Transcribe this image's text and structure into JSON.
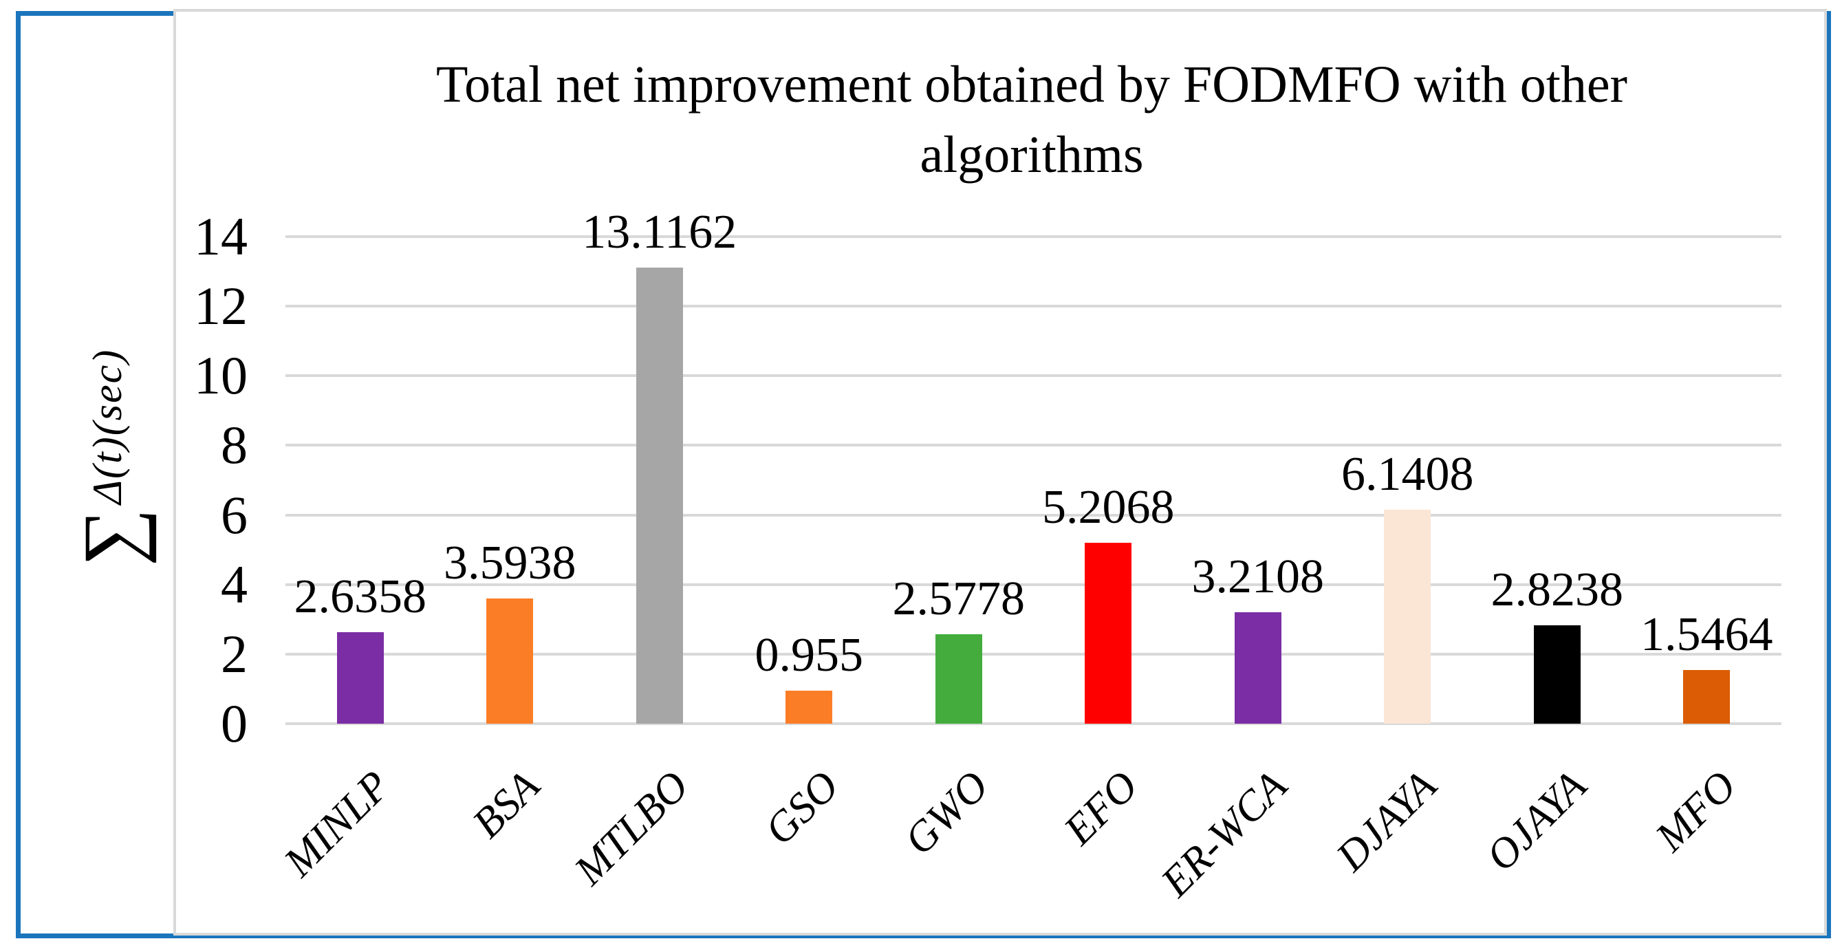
{
  "figure": {
    "outer_border_color": "#1B75BC",
    "panel_border_color": "#D9D9D9",
    "background": "#FFFFFF"
  },
  "ylabel_sigma": "∑",
  "ylabel_rest": "Δ(t)(sec)",
  "chart_data": {
    "type": "bar",
    "title": "Total net improvement obtained by FODMFO with other algorithms",
    "ylabel": "∑ Δ(t)(sec)",
    "xlabel": "",
    "ylim": [
      0,
      14
    ],
    "ytick_step": 2,
    "yticks": [
      0,
      2,
      4,
      6,
      8,
      10,
      12,
      14
    ],
    "grid": "horizontal-major",
    "gridline_color": "#D9D9D9",
    "legend": "none",
    "categories": [
      "MINLP",
      "BSA",
      "MTLBO",
      "GSO",
      "GWO",
      "EFO",
      "ER-WCA",
      "DJAYA",
      "OJAYA",
      "MFO"
    ],
    "values": [
      2.6358,
      3.5938,
      13.1162,
      0.955,
      2.5778,
      5.2068,
      3.2108,
      6.1408,
      2.8238,
      1.5464
    ],
    "value_labels": [
      "2.6358",
      "3.5938",
      "13.1162",
      "0.955",
      "2.5778",
      "5.2068",
      "3.2108",
      "6.1408",
      "2.8238",
      "1.5464"
    ],
    "bar_colors": [
      "#7A2DA4",
      "#FB7D26",
      "#A6A6A6",
      "#FB7D26",
      "#43AC3C",
      "#FF0000",
      "#7A2DA4",
      "#FBE5D5",
      "#000000",
      "#DB5C04"
    ]
  }
}
